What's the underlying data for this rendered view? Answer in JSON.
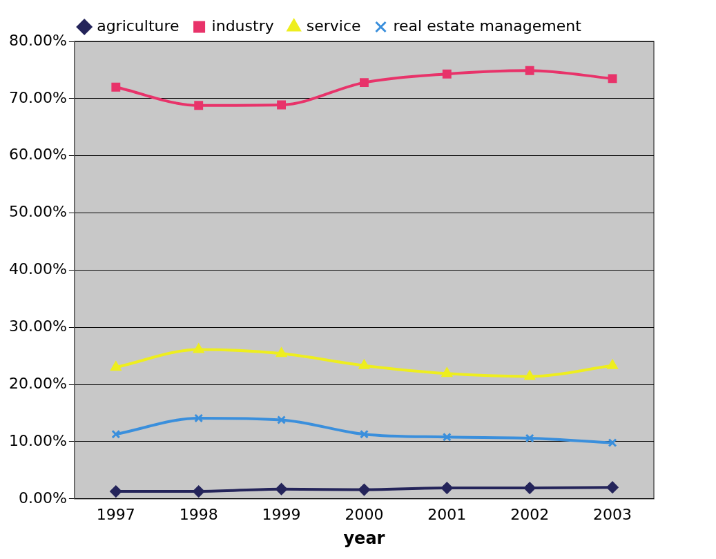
{
  "chart_data": {
    "type": "line",
    "xlabel": "year",
    "categories": [
      "1997",
      "1998",
      "1999",
      "2000",
      "2001",
      "2002",
      "2003"
    ],
    "series": [
      {
        "name": "agriculture",
        "color": "#24245a",
        "marker": "diamond",
        "values": [
          1.3,
          1.3,
          1.7,
          1.6,
          1.9,
          1.9,
          2.0
        ]
      },
      {
        "name": "industry",
        "color": "#e8336a",
        "marker": "square",
        "values": [
          72.0,
          68.8,
          68.9,
          72.8,
          74.3,
          74.9,
          73.5
        ]
      },
      {
        "name": "service",
        "color": "#eeee1e",
        "marker": "triangle",
        "values": [
          23.0,
          26.1,
          25.4,
          23.3,
          21.9,
          21.4,
          23.3
        ]
      },
      {
        "name": "real estate management",
        "color": "#3a8fdc",
        "marker": "cross",
        "values": [
          11.3,
          14.1,
          13.8,
          11.3,
          10.8,
          10.6,
          9.8
        ]
      }
    ],
    "ylim": [
      0,
      80
    ],
    "yticks": [
      {
        "value": 0,
        "label": "0.00%"
      },
      {
        "value": 10,
        "label": "10.00%"
      },
      {
        "value": 20,
        "label": "20.00%"
      },
      {
        "value": 30,
        "label": "30.00%"
      },
      {
        "value": 40,
        "label": "40.00%"
      },
      {
        "value": 50,
        "label": "50.00%"
      },
      {
        "value": 60,
        "label": "60.00%"
      },
      {
        "value": 70,
        "label": "70.00%"
      },
      {
        "value": 80,
        "label": "80.00%"
      }
    ],
    "grid": "y",
    "legend": "top",
    "line_style": "solid"
  }
}
